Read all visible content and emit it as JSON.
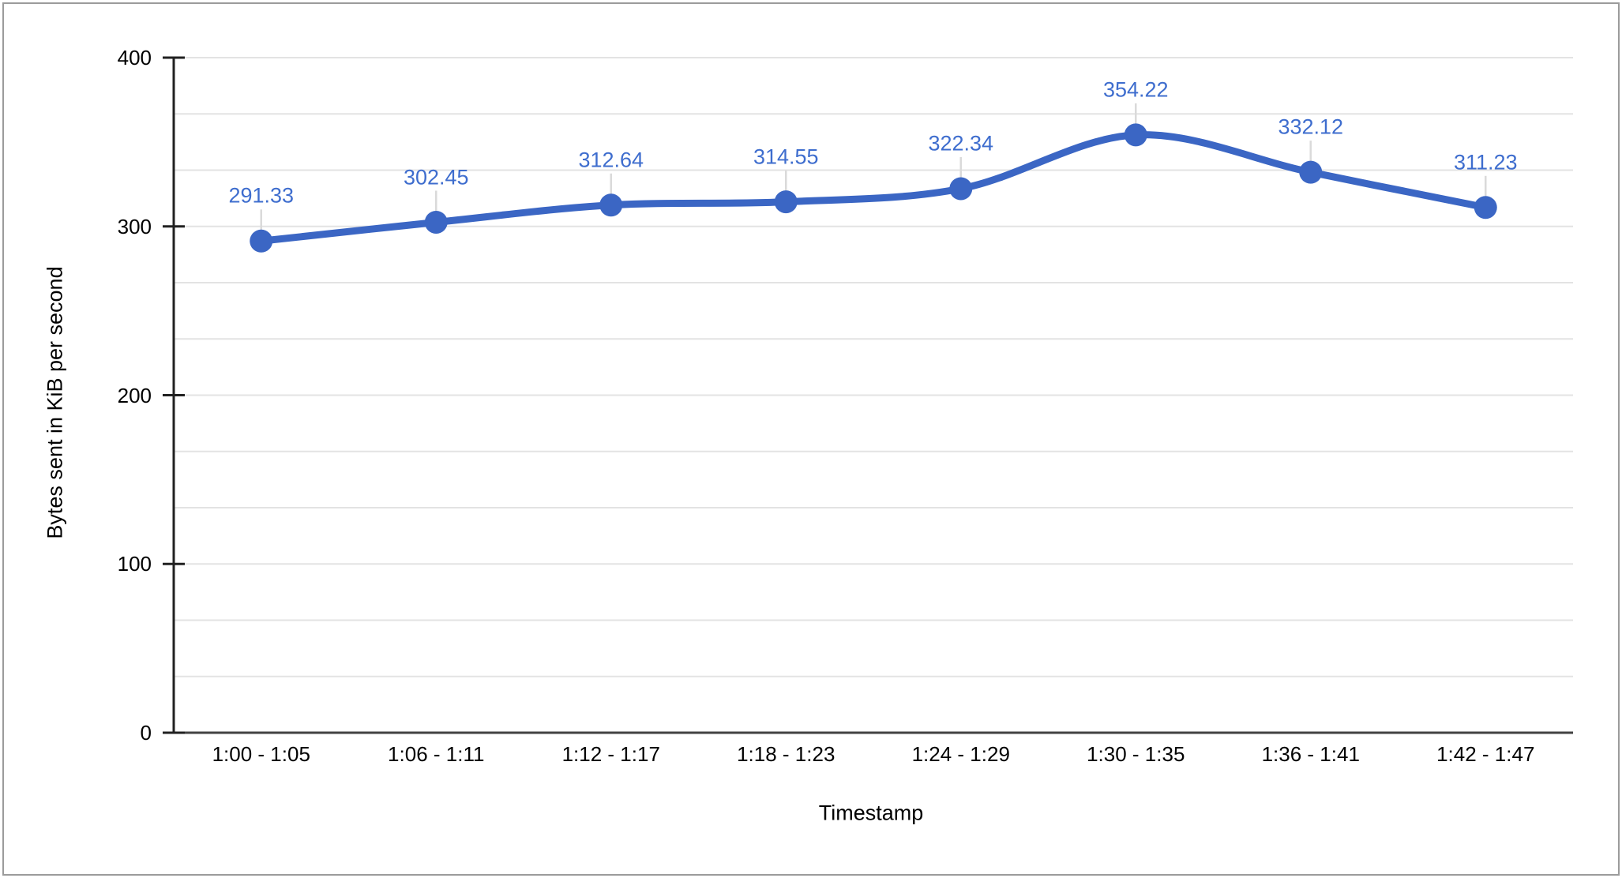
{
  "window": {
    "background": "#ffffff",
    "border_color": "#9b9b9b"
  },
  "chart_data": {
    "type": "line",
    "title": "",
    "xlabel": "Timestamp",
    "ylabel": "Bytes sent in KiB per second",
    "categories": [
      "1:00 - 1:05",
      "1:06 - 1:11",
      "1:12 - 1:17",
      "1:18 - 1:23",
      "1:24 - 1:29",
      "1:30 - 1:35",
      "1:36 - 1:41",
      "1:42 - 1:47"
    ],
    "values": [
      291.33,
      302.45,
      312.64,
      314.55,
      322.34,
      354.22,
      332.12,
      311.23
    ],
    "point_labels": [
      "291.33",
      "302.45",
      "312.64",
      "314.55",
      "322.34",
      "354.22",
      "332.12",
      "311.23"
    ],
    "y_ticks": [
      0,
      100,
      200,
      300,
      400
    ],
    "ylim": [
      0,
      400
    ],
    "minor_divisions": 3,
    "smooth": true,
    "grid": "horizontal",
    "legend": "none",
    "colors": {
      "series": "#3b66c4",
      "data_label": "#3e6dce",
      "axis_text": "#000000",
      "axis_line": "#212121",
      "baseline": "#424242",
      "gridline": "#e3e3e3",
      "leader_line": "#dadada"
    }
  }
}
